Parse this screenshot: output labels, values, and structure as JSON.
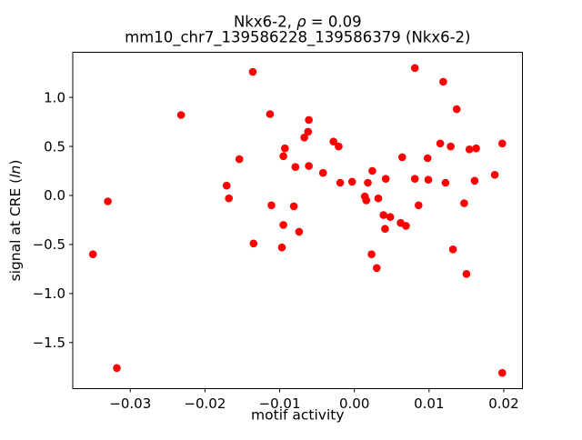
{
  "figure": {
    "title_line1_prefix": "Nkx6-2, ",
    "title_line1_rho": "ρ",
    "title_line1_suffix": " = 0.09",
    "title_line2": "mm10_chr7_139586228_139586379 (Nkx6-2)",
    "xlabel": "motif activity",
    "ylabel_prefix": "signal at CRE (",
    "ylabel_italic": "ln",
    "ylabel_suffix": ")"
  },
  "chart_data": {
    "type": "scatter",
    "title": "Nkx6-2, ρ = 0.09",
    "subtitle": "mm10_chr7_139586228_139586379 (Nkx6-2)",
    "xlabel": "motif activity",
    "ylabel": "signal at CRE (ln)",
    "legend": "none",
    "grid": false,
    "marker_color": "#ff0000",
    "marker_radius_px": 4.3,
    "xlim": [
      -0.0377,
      0.0225
    ],
    "ylim": [
      -1.97,
      1.46
    ],
    "x_ticks": [
      {
        "value": -0.03,
        "label": "−0.03"
      },
      {
        "value": -0.02,
        "label": "−0.02"
      },
      {
        "value": -0.01,
        "label": "−0.01"
      },
      {
        "value": 0.0,
        "label": "0.00"
      },
      {
        "value": 0.01,
        "label": "0.01"
      },
      {
        "value": 0.02,
        "label": "0.02"
      }
    ],
    "y_ticks": [
      {
        "value": 1.0,
        "label": "1.0"
      },
      {
        "value": 0.5,
        "label": "0.5"
      },
      {
        "value": 0.0,
        "label": "0.0"
      },
      {
        "value": -0.5,
        "label": "−0.5"
      },
      {
        "value": -1.0,
        "label": "−1.0"
      },
      {
        "value": -1.5,
        "label": "−1.5"
      }
    ],
    "points": [
      [
        -0.0136,
        1.26
      ],
      [
        -0.0232,
        0.82
      ],
      [
        -0.0113,
        0.83
      ],
      [
        -0.0154,
        0.37
      ],
      [
        -0.0093,
        0.48
      ],
      [
        -0.0095,
        0.4
      ],
      [
        -0.0079,
        0.29
      ],
      [
        -0.0171,
        0.1
      ],
      [
        -0.0168,
        -0.03
      ],
      [
        -0.033,
        -0.06
      ],
      [
        -0.0111,
        -0.1
      ],
      [
        -0.0081,
        -0.11
      ],
      [
        0.0081,
        1.3
      ],
      [
        0.0119,
        1.16
      ],
      [
        0.0137,
        0.88
      ],
      [
        -0.0061,
        0.77
      ],
      [
        -0.0062,
        0.65
      ],
      [
        -0.0067,
        0.59
      ],
      [
        -0.0028,
        0.55
      ],
      [
        -0.0021,
        0.5
      ],
      [
        0.0115,
        0.53
      ],
      [
        0.0129,
        0.5
      ],
      [
        0.0154,
        0.47
      ],
      [
        0.0163,
        0.48
      ],
      [
        0.0198,
        0.53
      ],
      [
        0.0064,
        0.39
      ],
      [
        0.0098,
        0.38
      ],
      [
        -0.0061,
        0.3
      ],
      [
        -0.0042,
        0.23
      ],
      [
        0.0024,
        0.25
      ],
      [
        -0.0019,
        0.13
      ],
      [
        -0.0003,
        0.14
      ],
      [
        0.0018,
        0.13
      ],
      [
        0.0042,
        0.17
      ],
      [
        0.0081,
        0.17
      ],
      [
        0.0099,
        0.16
      ],
      [
        0.0122,
        0.13
      ],
      [
        0.0161,
        0.15
      ],
      [
        0.0188,
        0.21
      ],
      [
        0.0014,
        -0.01
      ],
      [
        0.0016,
        -0.05
      ],
      [
        0.0032,
        -0.03
      ],
      [
        0.0086,
        -0.1
      ],
      [
        0.0147,
        -0.08
      ],
      [
        0.0039,
        -0.2
      ],
      [
        0.0048,
        -0.22
      ],
      [
        0.0041,
        -0.34
      ],
      [
        0.0062,
        -0.28
      ],
      [
        0.0069,
        -0.31
      ],
      [
        -0.035,
        -0.6
      ],
      [
        -0.0318,
        -1.76
      ],
      [
        -0.0135,
        -0.49
      ],
      [
        -0.0095,
        -0.3
      ],
      [
        -0.0074,
        -0.37
      ],
      [
        -0.0097,
        -0.53
      ],
      [
        0.0023,
        -0.6
      ],
      [
        0.003,
        -0.74
      ],
      [
        0.0132,
        -0.55
      ],
      [
        0.015,
        -0.8
      ],
      [
        0.0198,
        -1.81
      ]
    ]
  }
}
